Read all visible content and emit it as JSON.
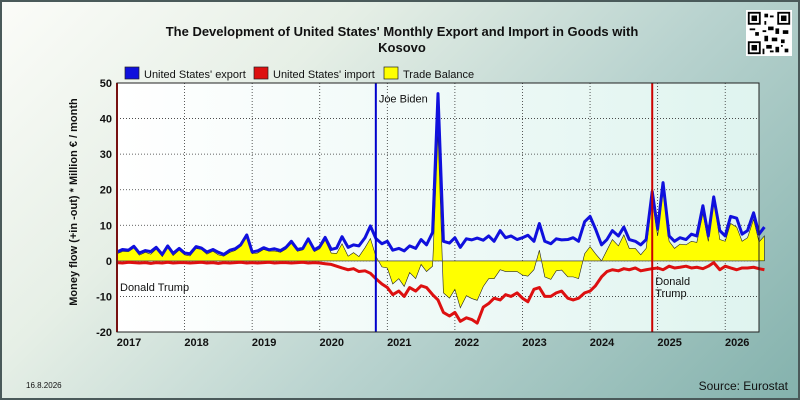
{
  "footer": {
    "date_stamp": "16.8.2026",
    "source": "Source: Eurostat"
  },
  "chart_data": {
    "type": "area",
    "title_line1": "The Development of United States' Monthly Export and Import in Goods with",
    "title_line2": "Kosovo",
    "ylabel": "Money flow (+in -out) * Million € / month",
    "ylim": [
      -20,
      50
    ],
    "yticks": [
      -20,
      -10,
      0,
      10,
      20,
      30,
      40,
      50
    ],
    "x_range": [
      2017.0,
      2026.5
    ],
    "year_labels": [
      2017,
      2018,
      2019,
      2020,
      2021,
      2022,
      2023,
      2024,
      2025,
      2026
    ],
    "grid": true,
    "legend_position": "top",
    "series": [
      {
        "name": "United States' export",
        "color": "#1010dd",
        "values": [
          [
            2017.0,
            2.5
          ],
          [
            2017.08,
            3.2
          ],
          [
            2017.17,
            3.0
          ],
          [
            2017.25,
            4.1
          ],
          [
            2017.33,
            2.2
          ],
          [
            2017.42,
            2.9
          ],
          [
            2017.5,
            2.6
          ],
          [
            2017.58,
            3.8
          ],
          [
            2017.67,
            1.8
          ],
          [
            2017.75,
            4.2
          ],
          [
            2017.83,
            2.1
          ],
          [
            2017.92,
            3.5
          ],
          [
            2018.0,
            2.2
          ],
          [
            2018.08,
            2.0
          ],
          [
            2018.17,
            4.0
          ],
          [
            2018.25,
            3.6
          ],
          [
            2018.33,
            2.5
          ],
          [
            2018.42,
            3.2
          ],
          [
            2018.5,
            2.4
          ],
          [
            2018.58,
            1.8
          ],
          [
            2018.67,
            3.0
          ],
          [
            2018.75,
            3.4
          ],
          [
            2018.83,
            4.5
          ],
          [
            2018.92,
            7.3
          ],
          [
            2019.0,
            2.5
          ],
          [
            2019.08,
            2.8
          ],
          [
            2019.17,
            3.7
          ],
          [
            2019.25,
            3.1
          ],
          [
            2019.33,
            3.4
          ],
          [
            2019.42,
            2.9
          ],
          [
            2019.5,
            3.8
          ],
          [
            2019.58,
            5.5
          ],
          [
            2019.67,
            3.2
          ],
          [
            2019.75,
            3.5
          ],
          [
            2019.83,
            6.2
          ],
          [
            2019.92,
            3.1
          ],
          [
            2020.0,
            4.0
          ],
          [
            2020.08,
            6.6
          ],
          [
            2020.17,
            3.2
          ],
          [
            2020.25,
            3.6
          ],
          [
            2020.33,
            6.8
          ],
          [
            2020.42,
            3.8
          ],
          [
            2020.5,
            4.5
          ],
          [
            2020.58,
            4.2
          ],
          [
            2020.67,
            6.5
          ],
          [
            2020.75,
            9.8
          ],
          [
            2020.83,
            6.3
          ],
          [
            2020.92,
            4.8
          ],
          [
            2021.0,
            5.5
          ],
          [
            2021.08,
            3.0
          ],
          [
            2021.17,
            3.5
          ],
          [
            2021.25,
            2.8
          ],
          [
            2021.33,
            4.2
          ],
          [
            2021.42,
            3.5
          ],
          [
            2021.5,
            6.0
          ],
          [
            2021.58,
            4.5
          ],
          [
            2021.67,
            8.0
          ],
          [
            2021.75,
            47.0
          ],
          [
            2021.83,
            5.5
          ],
          [
            2021.92,
            5.0
          ],
          [
            2022.0,
            6.5
          ],
          [
            2022.08,
            3.8
          ],
          [
            2022.17,
            6.2
          ],
          [
            2022.25,
            5.9
          ],
          [
            2022.33,
            6.4
          ],
          [
            2022.42,
            5.8
          ],
          [
            2022.5,
            7.0
          ],
          [
            2022.58,
            5.5
          ],
          [
            2022.67,
            8.5
          ],
          [
            2022.75,
            6.5
          ],
          [
            2022.83,
            7.0
          ],
          [
            2022.92,
            6.0
          ],
          [
            2023.0,
            6.5
          ],
          [
            2023.08,
            7.2
          ],
          [
            2023.17,
            5.5
          ],
          [
            2023.25,
            10.5
          ],
          [
            2023.33,
            5.5
          ],
          [
            2023.42,
            4.8
          ],
          [
            2023.5,
            6.2
          ],
          [
            2023.58,
            5.9
          ],
          [
            2023.67,
            6.0
          ],
          [
            2023.75,
            6.5
          ],
          [
            2023.83,
            5.5
          ],
          [
            2023.92,
            11.0
          ],
          [
            2024.0,
            12.5
          ],
          [
            2024.08,
            9.0
          ],
          [
            2024.17,
            4.5
          ],
          [
            2024.25,
            6.0
          ],
          [
            2024.33,
            8.5
          ],
          [
            2024.42,
            7.0
          ],
          [
            2024.5,
            9.5
          ],
          [
            2024.58,
            6.0
          ],
          [
            2024.67,
            5.5
          ],
          [
            2024.75,
            4.5
          ],
          [
            2024.83,
            6.0
          ],
          [
            2024.92,
            19.5
          ],
          [
            2025.0,
            9.0
          ],
          [
            2025.08,
            22.0
          ],
          [
            2025.17,
            7.0
          ],
          [
            2025.25,
            5.5
          ],
          [
            2025.33,
            6.5
          ],
          [
            2025.42,
            6.0
          ],
          [
            2025.5,
            7.5
          ],
          [
            2025.58,
            7.0
          ],
          [
            2025.67,
            15.5
          ],
          [
            2025.75,
            7.0
          ],
          [
            2025.83,
            18.0
          ],
          [
            2025.92,
            8.5
          ],
          [
            2026.0,
            7.0
          ],
          [
            2026.08,
            12.5
          ],
          [
            2026.17,
            12.0
          ],
          [
            2026.25,
            7.5
          ],
          [
            2026.33,
            8.5
          ],
          [
            2026.42,
            13.5
          ],
          [
            2026.5,
            7.5
          ],
          [
            2026.58,
            9.5
          ]
        ]
      },
      {
        "name": "United States' import",
        "color": "#dd1010",
        "values": [
          [
            2017.0,
            -0.5
          ],
          [
            2017.08,
            -0.6
          ],
          [
            2017.17,
            -0.4
          ],
          [
            2017.25,
            -0.5
          ],
          [
            2017.33,
            -0.6
          ],
          [
            2017.42,
            -0.5
          ],
          [
            2017.5,
            -0.7
          ],
          [
            2017.58,
            -0.5
          ],
          [
            2017.67,
            -0.6
          ],
          [
            2017.75,
            -0.4
          ],
          [
            2017.83,
            -0.6
          ],
          [
            2017.92,
            -0.5
          ],
          [
            2018.0,
            -0.5
          ],
          [
            2018.08,
            -0.6
          ],
          [
            2018.17,
            -0.5
          ],
          [
            2018.25,
            -0.4
          ],
          [
            2018.33,
            -0.6
          ],
          [
            2018.42,
            -0.5
          ],
          [
            2018.5,
            -0.7
          ],
          [
            2018.58,
            -0.5
          ],
          [
            2018.67,
            -0.6
          ],
          [
            2018.75,
            -0.5
          ],
          [
            2018.83,
            -0.4
          ],
          [
            2018.92,
            -0.6
          ],
          [
            2019.0,
            -0.5
          ],
          [
            2019.08,
            -0.6
          ],
          [
            2019.17,
            -0.5
          ],
          [
            2019.25,
            -0.4
          ],
          [
            2019.33,
            -0.6
          ],
          [
            2019.42,
            -0.5
          ],
          [
            2019.5,
            -0.5
          ],
          [
            2019.58,
            -0.6
          ],
          [
            2019.67,
            -0.5
          ],
          [
            2019.75,
            -0.4
          ],
          [
            2019.83,
            -0.6
          ],
          [
            2019.92,
            -0.5
          ],
          [
            2020.0,
            -0.6
          ],
          [
            2020.08,
            -0.8
          ],
          [
            2020.17,
            -1.0
          ],
          [
            2020.25,
            -1.5
          ],
          [
            2020.33,
            -2.0
          ],
          [
            2020.42,
            -2.5
          ],
          [
            2020.5,
            -2.2
          ],
          [
            2020.58,
            -3.0
          ],
          [
            2020.67,
            -2.8
          ],
          [
            2020.75,
            -3.5
          ],
          [
            2020.83,
            -5.0
          ],
          [
            2020.92,
            -6.5
          ],
          [
            2021.0,
            -7.5
          ],
          [
            2021.08,
            -9.5
          ],
          [
            2021.17,
            -8.5
          ],
          [
            2021.25,
            -10.0
          ],
          [
            2021.33,
            -7.5
          ],
          [
            2021.42,
            -8.5
          ],
          [
            2021.5,
            -7.0
          ],
          [
            2021.58,
            -7.5
          ],
          [
            2021.67,
            -9.5
          ],
          [
            2021.75,
            -11.0
          ],
          [
            2021.83,
            -14.5
          ],
          [
            2021.92,
            -15.5
          ],
          [
            2022.0,
            -14.5
          ],
          [
            2022.08,
            -17.0
          ],
          [
            2022.17,
            -16.0
          ],
          [
            2022.25,
            -16.5
          ],
          [
            2022.33,
            -17.5
          ],
          [
            2022.42,
            -13.0
          ],
          [
            2022.5,
            -12.0
          ],
          [
            2022.58,
            -10.5
          ],
          [
            2022.67,
            -11.0
          ],
          [
            2022.75,
            -9.5
          ],
          [
            2022.83,
            -10.0
          ],
          [
            2022.92,
            -9.0
          ],
          [
            2023.0,
            -10.5
          ],
          [
            2023.08,
            -11.5
          ],
          [
            2023.17,
            -8.0
          ],
          [
            2023.25,
            -7.5
          ],
          [
            2023.33,
            -10.0
          ],
          [
            2023.42,
            -10.0
          ],
          [
            2023.5,
            -9.0
          ],
          [
            2023.58,
            -8.5
          ],
          [
            2023.67,
            -10.5
          ],
          [
            2023.75,
            -11.0
          ],
          [
            2023.83,
            -10.5
          ],
          [
            2023.92,
            -9.0
          ],
          [
            2024.0,
            -8.5
          ],
          [
            2024.08,
            -7.0
          ],
          [
            2024.17,
            -4.5
          ],
          [
            2024.25,
            -3.0
          ],
          [
            2024.33,
            -2.5
          ],
          [
            2024.42,
            -2.8
          ],
          [
            2024.5,
            -2.2
          ],
          [
            2024.58,
            -2.5
          ],
          [
            2024.67,
            -2.0
          ],
          [
            2024.75,
            -2.8
          ],
          [
            2024.83,
            -2.5
          ],
          [
            2024.92,
            -2.2
          ],
          [
            2025.0,
            -2.0
          ],
          [
            2025.08,
            -2.5
          ],
          [
            2025.17,
            -1.5
          ],
          [
            2025.25,
            -2.0
          ],
          [
            2025.33,
            -1.8
          ],
          [
            2025.42,
            -1.5
          ],
          [
            2025.5,
            -2.0
          ],
          [
            2025.58,
            -1.8
          ],
          [
            2025.67,
            -2.2
          ],
          [
            2025.75,
            -1.5
          ],
          [
            2025.83,
            -0.5
          ],
          [
            2025.92,
            -2.5
          ],
          [
            2026.0,
            -1.5
          ],
          [
            2026.08,
            -2.0
          ],
          [
            2026.17,
            -2.5
          ],
          [
            2026.25,
            -2.0
          ],
          [
            2026.33,
            -2.0
          ],
          [
            2026.42,
            -1.8
          ],
          [
            2026.5,
            -2.2
          ],
          [
            2026.58,
            -2.5
          ]
        ]
      },
      {
        "name": "Trade Balance",
        "color": "#ffff00",
        "derived_as": "export + import"
      }
    ],
    "annotations": [
      {
        "x": 2017.0,
        "color": "#cc0000",
        "label": "Donald Trump",
        "y_at": -8.5
      },
      {
        "x": 2020.83,
        "color": "#0000cc",
        "label": "Joe Biden",
        "y_at": 44.5
      },
      {
        "x": 2024.92,
        "color": "#cc0000",
        "label": "Donald\nTrump",
        "y_at": -8.5
      }
    ]
  }
}
